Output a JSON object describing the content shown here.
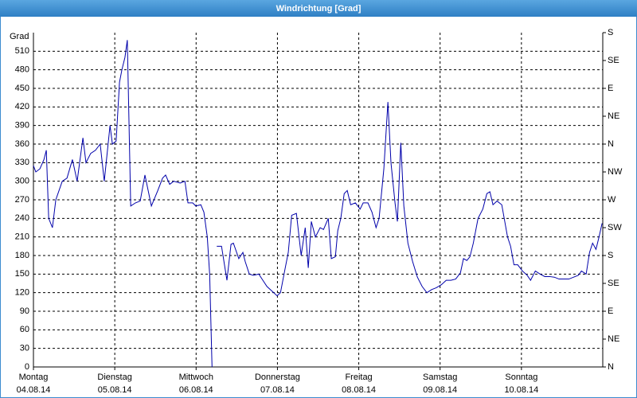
{
  "chart_data": {
    "type": "line",
    "title": "Windrichtung [Grad]",
    "ylabel": "Grad",
    "xlim": [
      0,
      168
    ],
    "xticks": [
      {
        "value": 0,
        "label": "Montag",
        "date": "04.08.14"
      },
      {
        "value": 24,
        "label": "Dienstag",
        "date": "05.08.14"
      },
      {
        "value": 48,
        "label": "Mittwoch",
        "date": "06.08.14"
      },
      {
        "value": 72,
        "label": "Donnerstag",
        "date": "07.08.14"
      },
      {
        "value": 96,
        "label": "Freitag",
        "date": "08.08.14"
      },
      {
        "value": 120,
        "label": "Samstag",
        "date": "09.08.14"
      },
      {
        "value": 144,
        "label": "Sonntag",
        "date": "10.08.14"
      }
    ],
    "ylim": [
      0,
      540
    ],
    "yticks": [
      0,
      30,
      60,
      90,
      120,
      150,
      180,
      210,
      240,
      270,
      300,
      330,
      360,
      390,
      420,
      450,
      480,
      510
    ],
    "y2lim": [
      0,
      540
    ],
    "y2ticks": [
      {
        "value": 0,
        "label": "N"
      },
      {
        "value": 45,
        "label": "NE"
      },
      {
        "value": 90,
        "label": "E"
      },
      {
        "value": 135,
        "label": "SE"
      },
      {
        "value": 180,
        "label": "S"
      },
      {
        "value": 225,
        "label": "SW"
      },
      {
        "value": 270,
        "label": "W"
      },
      {
        "value": 315,
        "label": "NW"
      },
      {
        "value": 360,
        "label": "N"
      },
      {
        "value": 405,
        "label": "NE"
      },
      {
        "value": 450,
        "label": "E"
      },
      {
        "value": 495,
        "label": "SE"
      },
      {
        "value": 540,
        "label": "S"
      }
    ],
    "grid": true,
    "series": [
      {
        "name": "Windrichtung",
        "color": "#0000aa",
        "x": [
          0,
          0.7,
          1.9,
          3.1,
          3.8,
          4.5,
          5.6,
          6.6,
          8.5,
          9.9,
          11.5,
          12.9,
          14.6,
          15.5,
          16.9,
          18.3,
          19.7,
          20.9,
          22.6,
          23.3,
          24.4,
          25.4,
          26.1,
          27.0,
          27.7,
          28.7,
          30.1,
          31.5,
          32.9,
          34.8,
          36.7,
          38.1,
          39.0,
          40.2,
          41.4,
          43.3,
          44.7,
          45.6,
          47.0,
          47.9,
          49.4,
          50.3,
          51.3,
          52.0,
          52.7,
          53.1,
          54.1,
          55.5,
          57.1,
          58.3,
          59.0,
          60.6,
          61.8,
          62.5,
          63.7,
          64.9,
          66.5,
          67.7,
          68.9,
          70.5,
          71.9,
          72.9,
          74.3,
          75.2,
          76.2,
          77.6,
          79.0,
          80.2,
          81.1,
          82.0,
          83.2,
          84.6,
          85.6,
          87.0,
          87.9,
          89.1,
          89.8,
          90.7,
          91.7,
          92.6,
          93.6,
          95.0,
          96.4,
          97.3,
          98.7,
          99.9,
          101.1,
          102.0,
          103.4,
          104.6,
          105.5,
          106.7,
          107.4,
          108.4,
          109.3,
          110.5,
          111.9,
          113.3,
          114.7,
          116.1,
          117.5,
          118.9,
          120.4,
          121.8,
          123.2,
          124.6,
          126.0,
          126.9,
          127.9,
          128.8,
          129.8,
          131.2,
          132.6,
          133.8,
          134.7,
          135.6,
          136.8,
          138.2,
          139.9,
          140.8,
          141.8,
          142.9,
          144.3,
          145.7,
          146.7,
          148.1,
          149.5,
          150.9,
          152.3,
          153.7,
          155.1,
          156.6,
          158.0,
          159.4,
          160.8,
          161.7,
          163.1,
          164.1,
          165.0,
          166.0,
          166.9,
          167.8
        ],
        "values": [
          325,
          315,
          320,
          335,
          350,
          240,
          225,
          270,
          300,
          305,
          335,
          300,
          370,
          330,
          345,
          350,
          360,
          300,
          390,
          360,
          365,
          460,
          480,
          500,
          528,
          260,
          265,
          268,
          310,
          260,
          285,
          305,
          310,
          295,
          300,
          297,
          300,
          265,
          265,
          260,
          262,
          250,
          210,
          150,
          0,
          null,
          195,
          195,
          140,
          198,
          200,
          175,
          185,
          170,
          150,
          148,
          150,
          140,
          130,
          122,
          115,
          120,
          160,
          185,
          245,
          248,
          180,
          225,
          160,
          235,
          210,
          225,
          222,
          240,
          175,
          178,
          220,
          240,
          280,
          285,
          262,
          265,
          255,
          265,
          265,
          250,
          225,
          240,
          320,
          428,
          330,
          265,
          235,
          362,
          260,
          200,
          170,
          145,
          130,
          120,
          125,
          128,
          133,
          140,
          140,
          142,
          152,
          175,
          172,
          178,
          200,
          240,
          255,
          280,
          283,
          262,
          268,
          262,
          210,
          195,
          165,
          165,
          155,
          148,
          140,
          155,
          150,
          146,
          146,
          145,
          142,
          142,
          142,
          145,
          148,
          155,
          150,
          185,
          200,
          190,
          210,
          232
        ]
      }
    ]
  }
}
